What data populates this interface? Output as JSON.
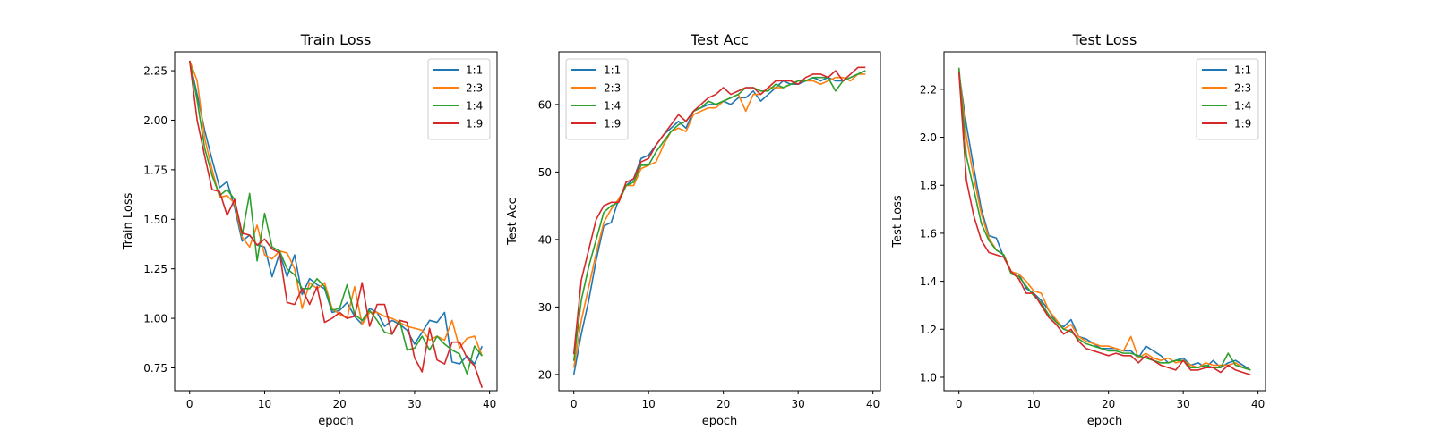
{
  "chart_data": [
    {
      "type": "line",
      "title": "Train Loss",
      "xlabel": "epoch",
      "ylabel": "Train Loss",
      "xlim": [
        -2,
        41
      ],
      "ylim": [
        0.635,
        2.345
      ],
      "xticks": [
        0,
        10,
        20,
        30,
        40
      ],
      "yticks": [
        0.75,
        1.0,
        1.25,
        1.5,
        1.75,
        2.0,
        2.25
      ],
      "ytick_decimals": 2,
      "legend_position": "top-right",
      "series": [
        {
          "name": "1:1",
          "color": "#1f77b4",
          "values": [
            2.3,
            2.13,
            1.95,
            1.8,
            1.66,
            1.69,
            1.56,
            1.39,
            1.42,
            1.37,
            1.36,
            1.21,
            1.33,
            1.21,
            1.32,
            1.12,
            1.2,
            1.17,
            1.15,
            1.03,
            1.04,
            1.08,
            1.01,
            0.97,
            1.05,
            1.03,
            0.96,
            0.99,
            0.97,
            0.94,
            0.87,
            0.93,
            0.99,
            0.98,
            1.03,
            0.78,
            0.77,
            0.81,
            0.77,
            0.86
          ]
        },
        {
          "name": "2:3",
          "color": "#ff7f0e",
          "values": [
            2.3,
            2.2,
            1.91,
            1.75,
            1.61,
            1.62,
            1.58,
            1.41,
            1.36,
            1.47,
            1.32,
            1.3,
            1.34,
            1.33,
            1.25,
            1.05,
            1.18,
            1.15,
            1.18,
            1.05,
            1.02,
            1.0,
            1.16,
            0.97,
            1.03,
            1.03,
            1.01,
            1.0,
            0.98,
            0.96,
            0.95,
            0.94,
            0.89,
            0.91,
            0.89,
            0.99,
            0.85,
            0.9,
            0.91,
            0.81
          ]
        },
        {
          "name": "1:4",
          "color": "#2ca02c",
          "values": [
            2.3,
            2.1,
            1.86,
            1.72,
            1.62,
            1.65,
            1.6,
            1.42,
            1.63,
            1.29,
            1.53,
            1.36,
            1.34,
            1.25,
            1.22,
            1.15,
            1.15,
            1.2,
            1.16,
            1.04,
            1.05,
            1.17,
            1.02,
            0.99,
            1.04,
            0.99,
            0.93,
            0.92,
            0.99,
            0.84,
            0.85,
            0.91,
            0.84,
            0.91,
            0.87,
            0.84,
            0.82,
            0.72,
            0.86,
            0.81
          ]
        },
        {
          "name": "1:9",
          "color": "#d62728",
          "values": [
            2.3,
            2.0,
            1.82,
            1.65,
            1.64,
            1.52,
            1.6,
            1.43,
            1.42,
            1.37,
            1.4,
            1.35,
            1.33,
            1.08,
            1.07,
            1.15,
            1.07,
            1.16,
            0.98,
            1.0,
            1.03,
            1.0,
            1.01,
            1.18,
            0.96,
            1.07,
            1.07,
            0.92,
            0.99,
            0.98,
            0.8,
            0.73,
            0.95,
            0.79,
            0.77,
            0.88,
            0.88,
            0.8,
            0.76,
            0.65
          ]
        }
      ]
    },
    {
      "type": "line",
      "title": "Test Acc",
      "xlabel": "epoch",
      "ylabel": "Test Acc",
      "xlim": [
        -2,
        41
      ],
      "ylim": [
        17.6,
        67.8
      ],
      "xticks": [
        0,
        10,
        20,
        30,
        40
      ],
      "yticks": [
        20,
        30,
        40,
        50,
        60
      ],
      "ytick_decimals": 0,
      "legend_position": "top-left",
      "series": [
        {
          "name": "1:1",
          "color": "#1f77b4",
          "values": [
            20.0,
            26.0,
            31.0,
            37.0,
            42.0,
            42.5,
            46.0,
            48.0,
            49.0,
            52.0,
            52.5,
            54.0,
            55.5,
            56.5,
            57.5,
            56.5,
            59.0,
            59.5,
            60.0,
            60.0,
            60.5,
            60.0,
            61.0,
            61.0,
            62.0,
            60.5,
            61.5,
            62.5,
            63.5,
            63.0,
            63.0,
            63.5,
            64.0,
            63.5,
            64.0,
            63.5,
            63.5,
            64.0,
            64.5,
            65.0
          ]
        },
        {
          "name": "2:3",
          "color": "#ff7f0e",
          "values": [
            21.0,
            28.0,
            33.0,
            38.0,
            42.5,
            44.5,
            46.0,
            48.0,
            48.0,
            50.5,
            51.0,
            51.5,
            54.0,
            56.0,
            56.5,
            56.0,
            58.5,
            59.0,
            59.5,
            59.5,
            60.5,
            61.0,
            61.5,
            59.0,
            61.5,
            61.5,
            62.5,
            62.5,
            62.5,
            63.0,
            63.5,
            63.5,
            63.5,
            63.0,
            63.5,
            64.0,
            64.0,
            63.5,
            64.5,
            64.5
          ]
        },
        {
          "name": "1:4",
          "color": "#2ca02c",
          "values": [
            22.0,
            31.0,
            36.0,
            40.0,
            44.0,
            45.0,
            45.5,
            48.0,
            48.5,
            51.0,
            51.0,
            53.0,
            54.5,
            56.0,
            57.0,
            57.5,
            59.0,
            59.5,
            60.5,
            60.0,
            60.5,
            61.0,
            61.5,
            62.5,
            62.5,
            62.0,
            62.0,
            63.0,
            62.5,
            63.0,
            63.5,
            63.5,
            64.0,
            64.0,
            64.0,
            62.0,
            63.5,
            64.0,
            64.5,
            65.0
          ]
        },
        {
          "name": "1:9",
          "color": "#d62728",
          "values": [
            23.0,
            34.0,
            38.5,
            43.0,
            45.0,
            45.5,
            45.5,
            48.5,
            49.0,
            51.5,
            52.0,
            54.0,
            55.5,
            57.0,
            58.5,
            57.5,
            59.0,
            60.0,
            61.0,
            61.5,
            62.5,
            61.5,
            62.0,
            62.5,
            62.5,
            61.5,
            62.5,
            63.5,
            63.5,
            63.5,
            63.0,
            64.0,
            64.5,
            64.5,
            64.0,
            65.0,
            63.5,
            64.5,
            65.5,
            65.5
          ]
        }
      ]
    },
    {
      "type": "line",
      "title": "Test Loss",
      "xlabel": "epoch",
      "ylabel": "Test Loss",
      "xlim": [
        -2,
        41
      ],
      "ylim": [
        0.944,
        2.356
      ],
      "xticks": [
        0,
        10,
        20,
        30,
        40
      ],
      "yticks": [
        1.0,
        1.2,
        1.4,
        1.6,
        1.8,
        2.0,
        2.2
      ],
      "ytick_decimals": 1,
      "legend_position": "top-right",
      "series": [
        {
          "name": "1:1",
          "color": "#1f77b4",
          "values": [
            2.27,
            2.05,
            1.87,
            1.7,
            1.59,
            1.58,
            1.5,
            1.44,
            1.43,
            1.37,
            1.35,
            1.32,
            1.28,
            1.23,
            1.21,
            1.24,
            1.17,
            1.16,
            1.14,
            1.12,
            1.12,
            1.12,
            1.11,
            1.11,
            1.08,
            1.13,
            1.11,
            1.09,
            1.06,
            1.07,
            1.08,
            1.05,
            1.06,
            1.04,
            1.07,
            1.04,
            1.06,
            1.07,
            1.05,
            1.03
          ]
        },
        {
          "name": "2:3",
          "color": "#ff7f0e",
          "values": [
            2.28,
            2.0,
            1.83,
            1.68,
            1.58,
            1.53,
            1.51,
            1.44,
            1.43,
            1.4,
            1.36,
            1.35,
            1.28,
            1.24,
            1.2,
            1.22,
            1.17,
            1.15,
            1.14,
            1.13,
            1.13,
            1.12,
            1.11,
            1.17,
            1.08,
            1.1,
            1.08,
            1.07,
            1.08,
            1.06,
            1.07,
            1.05,
            1.04,
            1.06,
            1.05,
            1.05,
            1.05,
            1.06,
            1.04,
            1.03
          ]
        },
        {
          "name": "1:4",
          "color": "#2ca02c",
          "values": [
            2.29,
            1.92,
            1.78,
            1.64,
            1.57,
            1.53,
            1.51,
            1.43,
            1.42,
            1.38,
            1.34,
            1.31,
            1.26,
            1.23,
            1.2,
            1.19,
            1.16,
            1.14,
            1.13,
            1.12,
            1.11,
            1.11,
            1.1,
            1.1,
            1.09,
            1.08,
            1.07,
            1.06,
            1.06,
            1.07,
            1.07,
            1.04,
            1.04,
            1.05,
            1.04,
            1.04,
            1.1,
            1.05,
            1.04,
            1.03
          ]
        },
        {
          "name": "1:9",
          "color": "#d62728",
          "values": [
            2.27,
            1.82,
            1.67,
            1.57,
            1.52,
            1.51,
            1.5,
            1.44,
            1.41,
            1.35,
            1.35,
            1.3,
            1.25,
            1.22,
            1.18,
            1.2,
            1.15,
            1.12,
            1.11,
            1.1,
            1.09,
            1.1,
            1.09,
            1.09,
            1.06,
            1.09,
            1.07,
            1.05,
            1.04,
            1.03,
            1.07,
            1.03,
            1.03,
            1.04,
            1.04,
            1.02,
            1.05,
            1.03,
            1.02,
            1.01
          ]
        }
      ]
    }
  ]
}
